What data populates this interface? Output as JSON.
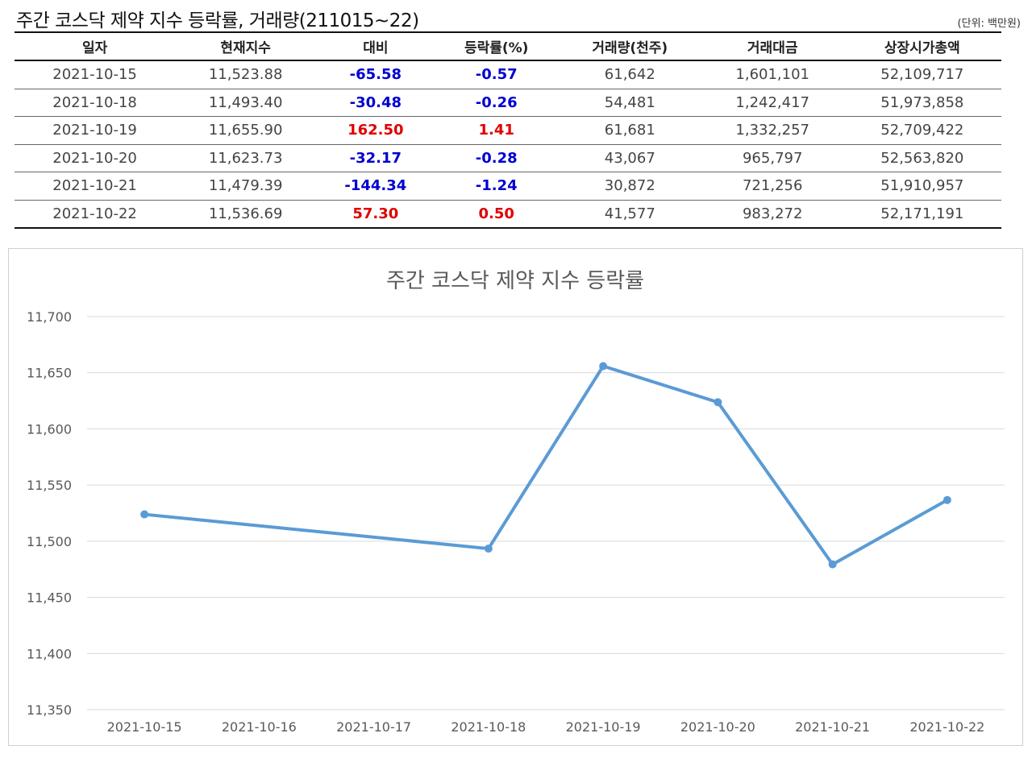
{
  "header": {
    "title": "주간 코스닥 제약 지수 등락률, 거래량(211015~22)",
    "unit": "(단위: 백만원)"
  },
  "table": {
    "columns": [
      "일자",
      "현재지수",
      "대비",
      "등락률(%)",
      "거래량(천주)",
      "거래대금",
      "상장시가총액"
    ],
    "rows": [
      [
        "2021-10-15",
        "11,523.88",
        "-65.58",
        "-0.57",
        "61,642",
        "1,601,101",
        "52,109,717"
      ],
      [
        "2021-10-18",
        "11,493.40",
        "-30.48",
        "-0.26",
        "54,481",
        "1,242,417",
        "51,973,858"
      ],
      [
        "2021-10-19",
        "11,655.90",
        "162.50",
        "1.41",
        "61,681",
        "1,332,257",
        "52,709,422"
      ],
      [
        "2021-10-20",
        "11,623.73",
        "-32.17",
        "-0.28",
        "43,067",
        "965,797",
        "52,563,820"
      ],
      [
        "2021-10-21",
        "11,479.39",
        "-144.34",
        "-1.24",
        "30,872",
        "721,256",
        "51,910,957"
      ],
      [
        "2021-10-22",
        "11,536.69",
        "57.30",
        "0.50",
        "41,577",
        "983,272",
        "52,171,191"
      ]
    ],
    "colors": {
      "negative": "#0000d0",
      "positive": "#e00000"
    }
  },
  "chart_data": {
    "type": "line",
    "title": "주간 코스닥 제약 지수 등락률",
    "categories": [
      "2021-10-15",
      "2021-10-16",
      "2021-10-17",
      "2021-10-18",
      "2021-10-19",
      "2021-10-20",
      "2021-10-21",
      "2021-10-22"
    ],
    "series": [
      {
        "values": [
          11523.88,
          null,
          null,
          11493.4,
          11655.9,
          11623.73,
          11479.39,
          11536.69
        ],
        "color": "#5b9bd5"
      }
    ],
    "ylim": [
      11350,
      11700
    ],
    "yticks": [
      "11,350",
      "11,400",
      "11,450",
      "11,500",
      "11,550",
      "11,600",
      "11,650",
      "11,700"
    ],
    "grid": true,
    "legend": "none"
  }
}
